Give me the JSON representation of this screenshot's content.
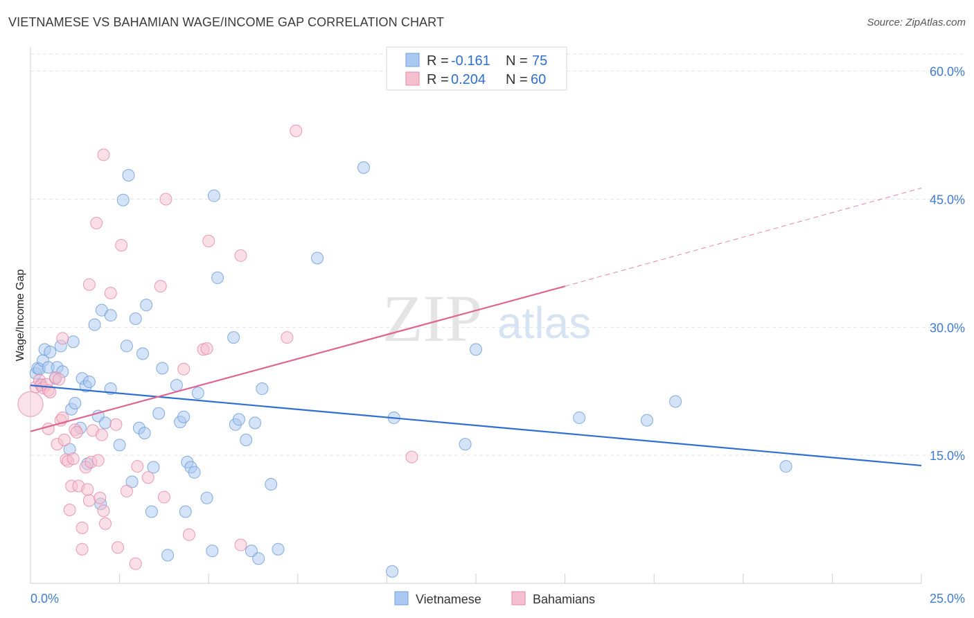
{
  "title": "VIETNAMESE VS BAHAMIAN WAGE/INCOME GAP CORRELATION CHART",
  "source": "Source: ZipAtlas.com",
  "watermark": {
    "zip": "ZIP",
    "atlas": "atlas"
  },
  "colors": {
    "vietnamese_fill": "#aac8f0",
    "vietnamese_stroke": "#6d9fdc",
    "vietnamese_line": "#2f6fcf",
    "bahamian_fill": "#f6bfd0",
    "bahamian_stroke": "#e88aa8",
    "bahamian_line": "#e0648e",
    "tick_text": "#3f7bd0",
    "grid": "#e2e2e2"
  },
  "legend_top": {
    "rows": [
      {
        "r_label": "R = ",
        "r_value": "-0.161",
        "n_label": "N = ",
        "n_value": "75"
      },
      {
        "r_label": "R = ",
        "r_value": "0.204",
        "n_label": "N = ",
        "n_value": "60"
      }
    ]
  },
  "legend_bottom": [
    "Vietnamese",
    "Bahamians"
  ],
  "chart_data": {
    "type": "scatter",
    "title": "VIETNAMESE VS BAHAMIAN WAGE/INCOME GAP CORRELATION CHART",
    "xlabel": "",
    "ylabel": "Wage/Income Gap",
    "xlim": [
      0,
      25
    ],
    "ylim": [
      0,
      62
    ],
    "x_tick_labels": [
      "0.0%",
      "25.0%"
    ],
    "y_ticks": [
      15,
      30,
      45,
      60
    ],
    "y_tick_labels": [
      "15.0%",
      "30.0%",
      "45.0%",
      "60.0%"
    ],
    "grid": "horizontal dashed",
    "legend_position": "top-center",
    "series": [
      {
        "name": "Vietnamese",
        "R": -0.161,
        "N": 75,
        "trendline": {
          "x": [
            0,
            25
          ],
          "y": [
            23.2,
            13.8
          ]
        },
        "points": [
          [
            0.15,
            24.6
          ],
          [
            0.2,
            25.2
          ],
          [
            0.25,
            25.1
          ],
          [
            0.3,
            23.3
          ],
          [
            0.35,
            26.1
          ],
          [
            0.4,
            27.4
          ],
          [
            0.5,
            25.3
          ],
          [
            0.55,
            27.1
          ],
          [
            0.7,
            24.0
          ],
          [
            0.75,
            25.3
          ],
          [
            0.85,
            27.8
          ],
          [
            0.9,
            24.8
          ],
          [
            1.1,
            15.7
          ],
          [
            1.15,
            20.4
          ],
          [
            1.2,
            28.3
          ],
          [
            1.25,
            21.1
          ],
          [
            1.4,
            18.2
          ],
          [
            1.45,
            24.0
          ],
          [
            1.55,
            23.1
          ],
          [
            1.6,
            14.0
          ],
          [
            1.65,
            23.6
          ],
          [
            1.8,
            30.3
          ],
          [
            1.9,
            19.6
          ],
          [
            1.97,
            9.3
          ],
          [
            2.0,
            32.0
          ],
          [
            2.1,
            18.8
          ],
          [
            2.25,
            22.8
          ],
          [
            2.25,
            31.4
          ],
          [
            2.5,
            16.2
          ],
          [
            2.6,
            44.9
          ],
          [
            2.7,
            27.8
          ],
          [
            2.75,
            47.8
          ],
          [
            2.85,
            11.9
          ],
          [
            2.95,
            31.0
          ],
          [
            3.05,
            18.2
          ],
          [
            3.15,
            26.9
          ],
          [
            3.2,
            17.6
          ],
          [
            3.25,
            32.6
          ],
          [
            3.4,
            8.4
          ],
          [
            3.45,
            13.6
          ],
          [
            3.6,
            19.9
          ],
          [
            3.7,
            25.2
          ],
          [
            3.85,
            3.3
          ],
          [
            4.1,
            23.2
          ],
          [
            4.2,
            18.9
          ],
          [
            4.3,
            19.5
          ],
          [
            4.35,
            8.4
          ],
          [
            4.4,
            14.2
          ],
          [
            4.5,
            13.6
          ],
          [
            4.6,
            13.0
          ],
          [
            4.7,
            22.3
          ],
          [
            4.95,
            10.0
          ],
          [
            5.1,
            3.8
          ],
          [
            5.15,
            45.4
          ],
          [
            5.25,
            35.8
          ],
          [
            5.7,
            28.8
          ],
          [
            5.75,
            18.6
          ],
          [
            5.85,
            19.2
          ],
          [
            6.05,
            16.8
          ],
          [
            6.2,
            3.8
          ],
          [
            6.3,
            18.8
          ],
          [
            6.4,
            2.9
          ],
          [
            6.5,
            22.8
          ],
          [
            6.75,
            11.6
          ],
          [
            6.95,
            4.0
          ],
          [
            8.05,
            38.1
          ],
          [
            9.35,
            48.7
          ],
          [
            10.15,
            1.4
          ],
          [
            10.2,
            19.4
          ],
          [
            12.2,
            16.3
          ],
          [
            12.5,
            27.4
          ],
          [
            15.4,
            19.4
          ],
          [
            17.3,
            19.1
          ],
          [
            18.1,
            21.3
          ],
          [
            21.2,
            13.7
          ]
        ]
      },
      {
        "name": "Bahamians",
        "R": 0.204,
        "N": 60,
        "trendline": {
          "x": [
            0,
            15
          ],
          "y": [
            17.8,
            34.8
          ]
        },
        "trendline_dashed": {
          "x": [
            15,
            25
          ],
          "y": [
            34.8,
            46.3
          ]
        },
        "points": [
          [
            0.0,
            21.0
          ],
          [
            0.15,
            23.0
          ],
          [
            0.25,
            23.8
          ],
          [
            0.3,
            23.2
          ],
          [
            0.35,
            22.9
          ],
          [
            0.45,
            23.3
          ],
          [
            0.5,
            22.6
          ],
          [
            0.5,
            18.1
          ],
          [
            0.55,
            22.4
          ],
          [
            0.7,
            24.1
          ],
          [
            0.75,
            16.3
          ],
          [
            0.8,
            23.9
          ],
          [
            0.85,
            19.1
          ],
          [
            0.9,
            19.4
          ],
          [
            0.9,
            28.7
          ],
          [
            0.95,
            16.8
          ],
          [
            1.0,
            14.5
          ],
          [
            1.05,
            14.3
          ],
          [
            1.1,
            8.6
          ],
          [
            1.15,
            11.4
          ],
          [
            1.2,
            14.6
          ],
          [
            1.25,
            18.0
          ],
          [
            1.3,
            17.7
          ],
          [
            1.35,
            11.4
          ],
          [
            1.45,
            6.5
          ],
          [
            1.45,
            4.0
          ],
          [
            1.55,
            13.6
          ],
          [
            1.6,
            11.0
          ],
          [
            1.65,
            35.0
          ],
          [
            1.65,
            9.7
          ],
          [
            1.7,
            14.2
          ],
          [
            1.75,
            17.9
          ],
          [
            1.85,
            42.2
          ],
          [
            1.9,
            14.4
          ],
          [
            1.95,
            10.0
          ],
          [
            2.0,
            17.4
          ],
          [
            2.05,
            50.2
          ],
          [
            2.05,
            8.5
          ],
          [
            2.1,
            7.0
          ],
          [
            2.25,
            34.0
          ],
          [
            2.4,
            18.6
          ],
          [
            2.45,
            4.2
          ],
          [
            2.55,
            39.6
          ],
          [
            2.7,
            10.8
          ],
          [
            2.95,
            2.3
          ],
          [
            3.0,
            13.7
          ],
          [
            3.3,
            12.4
          ],
          [
            3.65,
            34.8
          ],
          [
            3.75,
            10.1
          ],
          [
            3.8,
            45.0
          ],
          [
            4.3,
            25.1
          ],
          [
            4.45,
            5.7
          ],
          [
            4.85,
            27.4
          ],
          [
            4.95,
            27.5
          ],
          [
            5.0,
            40.1
          ],
          [
            5.9,
            38.4
          ],
          [
            5.9,
            4.5
          ],
          [
            7.2,
            28.8
          ],
          [
            7.45,
            53.0
          ],
          [
            10.7,
            14.8
          ]
        ]
      }
    ]
  }
}
